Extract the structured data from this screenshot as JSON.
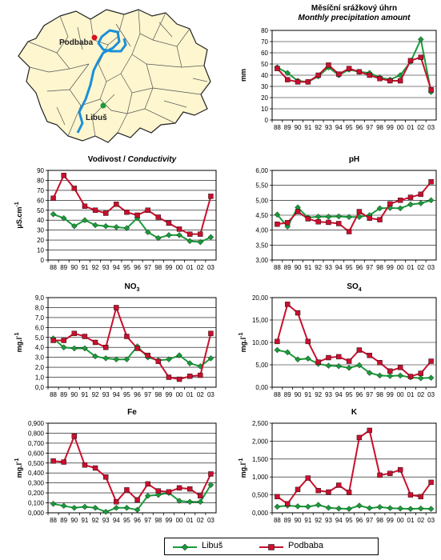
{
  "map": {
    "labels": [
      {
        "text": "Podbaba",
        "color": "#d7131d"
      },
      {
        "text": "Libuš",
        "color": "#1a9a3a"
      }
    ],
    "fill": "#fdf6cf",
    "river_color": "#1b8fd8"
  },
  "legend": {
    "items": [
      {
        "label": "Libuš",
        "color": "#1a9a3a"
      },
      {
        "label": "Podbaba",
        "color": "#c8102e"
      }
    ]
  },
  "chart_data": [
    {
      "type": "line",
      "title": "Měsíční srážkový úhrn",
      "subtitle": "Monthly precipitation amount",
      "ylabel": "mm",
      "ylabel_sup": "",
      "ylim": [
        0,
        80
      ],
      "yticks": [
        "0",
        "10",
        "20",
        "30",
        "40",
        "50",
        "60",
        "70",
        "80"
      ],
      "x": [
        "88",
        "89",
        "90",
        "91",
        "92",
        "93",
        "94",
        "95",
        "96",
        "97",
        "98",
        "99",
        "00",
        "01",
        "02",
        "03"
      ],
      "series": [
        {
          "name": "Libuš",
          "values": [
            47,
            42,
            35,
            34,
            39,
            47,
            40,
            45,
            43,
            42,
            38,
            36,
            40,
            52,
            72,
            25
          ]
        },
        {
          "name": "Podbaba",
          "values": [
            46,
            36,
            34,
            34,
            40,
            49,
            41,
            46,
            43,
            40,
            37,
            35,
            35,
            53,
            56,
            27
          ]
        }
      ]
    },
    {
      "type": "line",
      "title": "Vodivost / ",
      "subtitle": "Conductivity",
      "ylabel": "μS.cm",
      "ylabel_sup": "-1",
      "ylim": [
        0,
        90
      ],
      "yticks": [
        "0",
        "10",
        "20",
        "30",
        "40",
        "50",
        "60",
        "70",
        "80",
        "90"
      ],
      "x": [
        "88",
        "89",
        "90",
        "91",
        "92",
        "93",
        "94",
        "95",
        "96",
        "97",
        "98",
        "99",
        "00",
        "01",
        "02",
        "03"
      ],
      "series": [
        {
          "name": "Libuš",
          "values": [
            46,
            42,
            34,
            40,
            35,
            34,
            33,
            32,
            42,
            28,
            22,
            25,
            25,
            19,
            18,
            23
          ]
        },
        {
          "name": "Podbaba",
          "values": [
            62,
            85,
            72,
            54,
            50,
            47,
            56,
            48,
            45,
            50,
            43,
            37,
            31,
            26,
            26,
            64
          ]
        }
      ]
    },
    {
      "type": "line",
      "title": "pH",
      "subtitle": "",
      "ylabel": "",
      "ylabel_sup": "",
      "ylim": [
        3.0,
        6.0
      ],
      "yticks": [
        "3,00",
        "3,50",
        "4,00",
        "4,50",
        "5,00",
        "5,50",
        "6,00"
      ],
      "x": [
        "88",
        "89",
        "90",
        "91",
        "92",
        "93",
        "94",
        "95",
        "96",
        "97",
        "98",
        "99",
        "00",
        "01",
        "02",
        "03"
      ],
      "series": [
        {
          "name": "Libuš",
          "values": [
            4.52,
            4.12,
            4.76,
            4.42,
            4.45,
            4.45,
            4.46,
            4.44,
            4.44,
            4.5,
            4.73,
            4.74,
            4.73,
            4.86,
            4.9,
            5.0
          ]
        },
        {
          "name": "Podbaba",
          "values": [
            4.2,
            4.25,
            4.62,
            4.38,
            4.28,
            4.26,
            4.22,
            3.95,
            4.62,
            4.4,
            4.35,
            4.88,
            5.0,
            5.1,
            5.2,
            5.62
          ]
        }
      ]
    },
    {
      "type": "line",
      "title": "NO",
      "title_sub": "3",
      "subtitle": "",
      "ylabel": "mg.l",
      "ylabel_sup": "-1",
      "ylim": [
        0,
        9
      ],
      "yticks": [
        "0,0",
        "1,0",
        "2,0",
        "3,0",
        "4,0",
        "5,0",
        "6,0",
        "7,0",
        "8,0",
        "9,0"
      ],
      "x": [
        "88",
        "89",
        "90",
        "91",
        "92",
        "93",
        "94",
        "95",
        "96",
        "97",
        "98",
        "99",
        "00",
        "01",
        "02",
        "03"
      ],
      "series": [
        {
          "name": "Libuš",
          "values": [
            4.9,
            4.0,
            3.9,
            3.9,
            3.1,
            2.9,
            2.8,
            2.8,
            4.1,
            3.0,
            2.7,
            2.8,
            3.2,
            2.4,
            2.1,
            2.9
          ]
        },
        {
          "name": "Podbaba",
          "values": [
            4.7,
            4.7,
            5.4,
            5.1,
            4.5,
            4.0,
            8.0,
            5.1,
            3.9,
            3.2,
            2.6,
            1.0,
            0.8,
            1.1,
            1.2,
            5.4
          ]
        }
      ]
    },
    {
      "type": "line",
      "title": "SO",
      "title_sub": "4",
      "subtitle": "",
      "ylabel": "mg.l",
      "ylabel_sup": "-1",
      "ylim": [
        0,
        20
      ],
      "yticks": [
        "0,00",
        "5,00",
        "10,00",
        "15,00",
        "20,00"
      ],
      "x": [
        "88",
        "89",
        "90",
        "91",
        "92",
        "93",
        "94",
        "95",
        "96",
        "97",
        "98",
        "99",
        "00",
        "01",
        "02",
        "03"
      ],
      "series": [
        {
          "name": "Libuš",
          "values": [
            8.3,
            7.8,
            6.2,
            6.4,
            5.2,
            4.8,
            4.7,
            4.3,
            4.9,
            3.2,
            2.6,
            2.5,
            2.6,
            2.2,
            2.0,
            2.1
          ]
        },
        {
          "name": "Podbaba",
          "values": [
            10.2,
            18.5,
            16.6,
            10.2,
            5.6,
            6.6,
            6.8,
            5.8,
            8.3,
            7.1,
            5.5,
            3.6,
            4.4,
            2.4,
            3.1,
            5.8
          ]
        }
      ]
    },
    {
      "type": "line",
      "title": "Fe",
      "subtitle": "",
      "ylabel": "mg.l",
      "ylabel_sup": "-1",
      "ylim": [
        0,
        0.9
      ],
      "yticks": [
        "0,000",
        "0,100",
        "0,200",
        "0,300",
        "0,400",
        "0,500",
        "0,600",
        "0,700",
        "0,800",
        "0,900"
      ],
      "x": [
        "88",
        "89",
        "90",
        "91",
        "92",
        "93",
        "94",
        "95",
        "96",
        "97",
        "98",
        "99",
        "00",
        "01",
        "02",
        "03"
      ],
      "series": [
        {
          "name": "Libuš",
          "values": [
            0.09,
            0.07,
            0.05,
            0.06,
            0.05,
            0.01,
            0.05,
            0.05,
            0.03,
            0.17,
            0.18,
            0.2,
            0.12,
            0.11,
            0.11,
            0.28
          ]
        },
        {
          "name": "Podbaba",
          "values": [
            0.52,
            0.51,
            0.77,
            0.48,
            0.45,
            0.36,
            0.11,
            0.23,
            0.13,
            0.29,
            0.22,
            0.21,
            0.25,
            0.24,
            0.17,
            0.39
          ]
        }
      ]
    },
    {
      "type": "line",
      "title": "K",
      "subtitle": "",
      "ylabel": "mg.l",
      "ylabel_sup": "-1",
      "ylim": [
        0,
        2.5
      ],
      "yticks": [
        "0,000",
        "0,500",
        "1,000",
        "1,500",
        "2,000",
        "2,500"
      ],
      "x": [
        "88",
        "89",
        "90",
        "91",
        "92",
        "93",
        "94",
        "95",
        "96",
        "97",
        "98",
        "99",
        "00",
        "01",
        "02",
        "03"
      ],
      "series": [
        {
          "name": "Libuš",
          "values": [
            0.17,
            0.2,
            0.18,
            0.17,
            0.22,
            0.14,
            0.12,
            0.11,
            0.2,
            0.13,
            0.16,
            0.13,
            0.12,
            0.11,
            0.12,
            0.11
          ]
        },
        {
          "name": "Podbaba",
          "values": [
            0.45,
            0.25,
            0.65,
            0.97,
            0.62,
            0.58,
            0.77,
            0.57,
            2.1,
            2.3,
            1.05,
            1.1,
            1.2,
            0.5,
            0.45,
            0.85
          ]
        }
      ]
    }
  ]
}
